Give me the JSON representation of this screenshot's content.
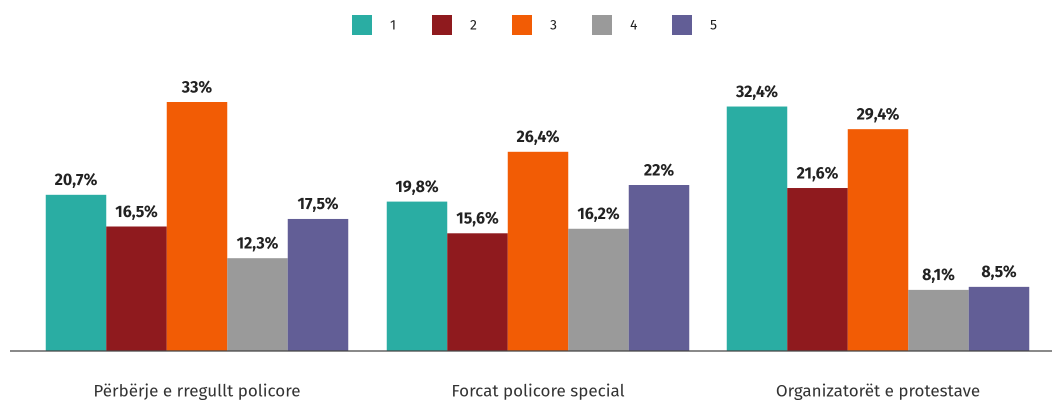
{
  "chart_data": {
    "type": "bar",
    "categories": [
      "Përbërje e rregullt policore",
      "Forcat policore special",
      "Organizatorët e protestave"
    ],
    "series": [
      {
        "name": "1",
        "color": "#2aada3",
        "values": [
          20.7,
          19.8,
          32.4
        ],
        "value_labels": [
          "20,7%",
          "19,8%",
          "32,4%"
        ]
      },
      {
        "name": "2",
        "color": "#8f1a1e",
        "values": [
          16.5,
          15.6,
          21.6
        ],
        "value_labels": [
          "16,5%",
          "15,6%",
          "21,6%"
        ]
      },
      {
        "name": "3",
        "color": "#f25c05",
        "values": [
          33,
          26.4,
          29.4
        ],
        "value_labels": [
          "33%",
          "26,4%",
          "29,4%"
        ]
      },
      {
        "name": "4",
        "color": "#9a9a9a",
        "values": [
          12.3,
          16.2,
          8.1
        ],
        "value_labels": [
          "12,3%",
          "16,2%",
          "8,1%"
        ]
      },
      {
        "name": "5",
        "color": "#625e96",
        "values": [
          17.5,
          22,
          8.5
        ],
        "value_labels": [
          "17,5%",
          "22%",
          "8,5%"
        ]
      }
    ],
    "legend": "top"
  }
}
